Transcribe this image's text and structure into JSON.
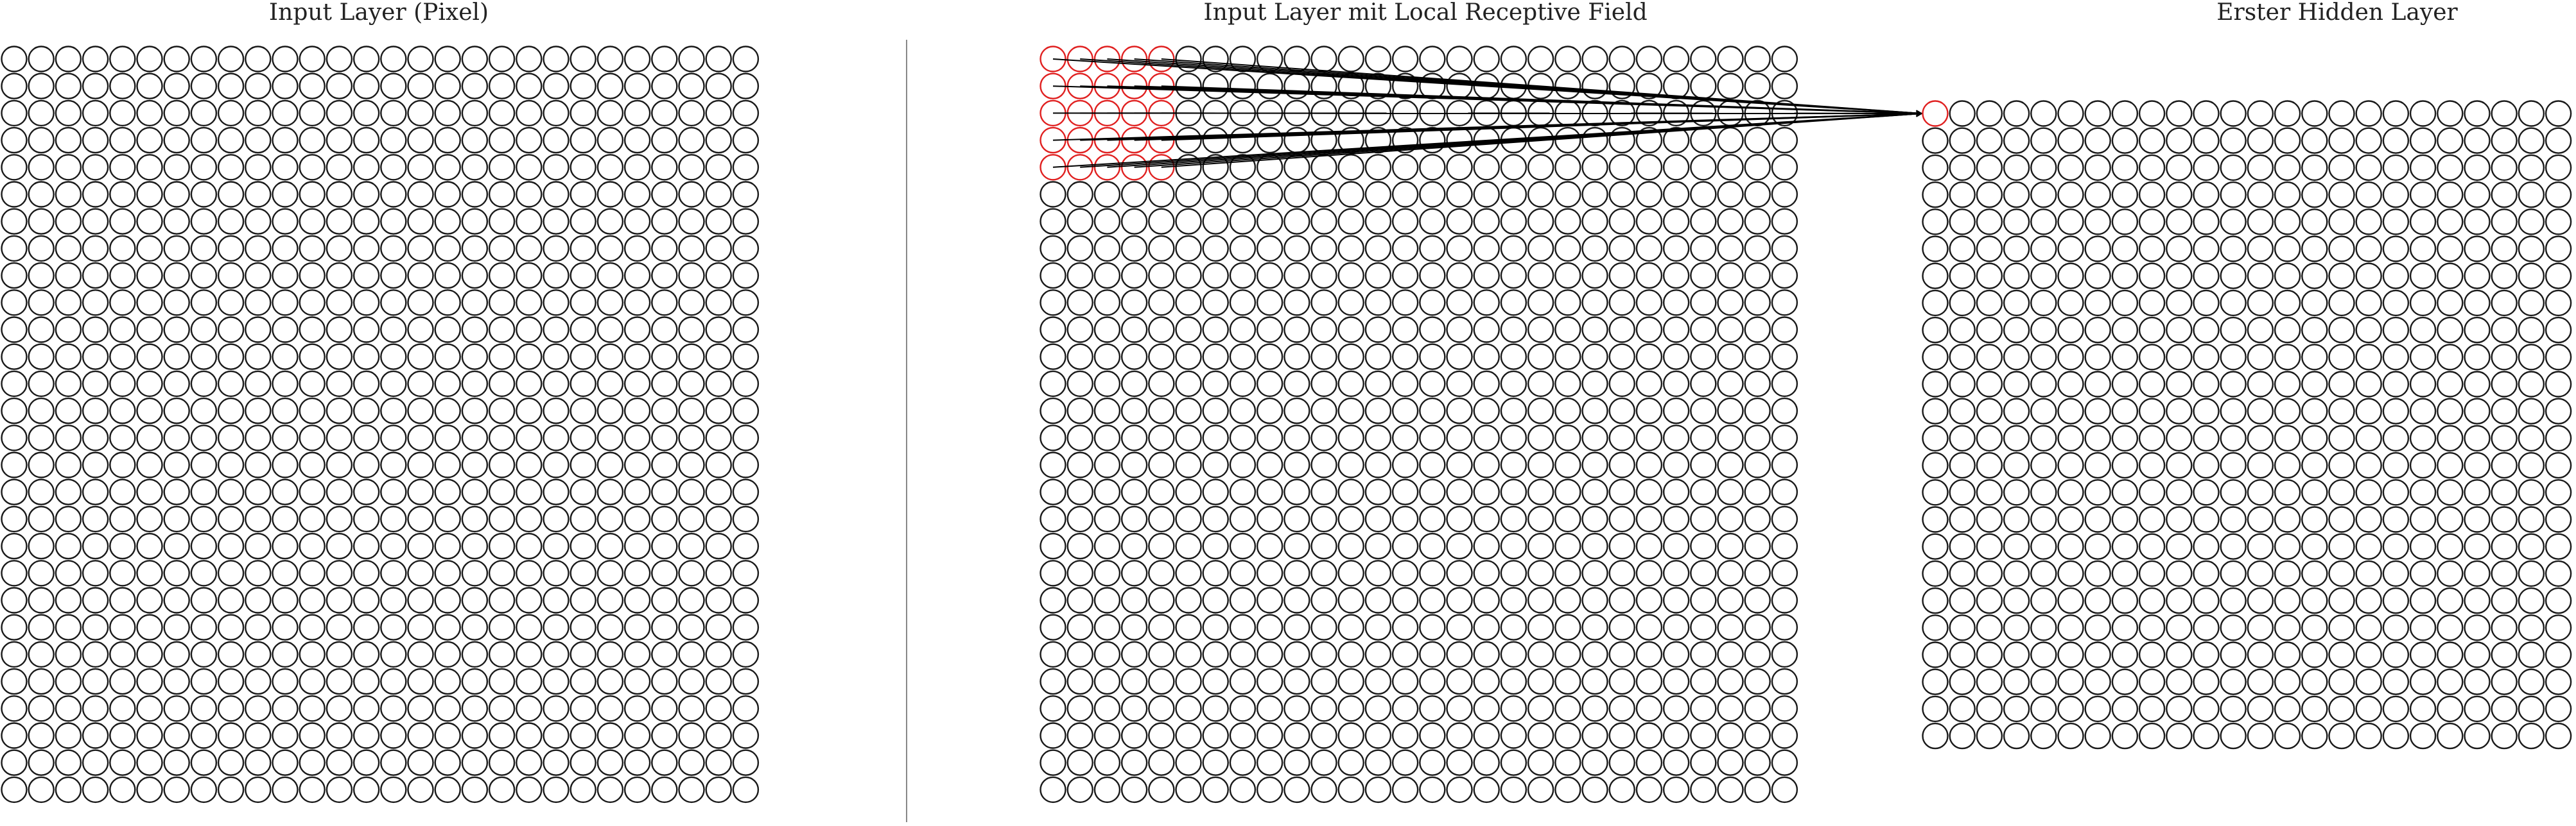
{
  "titles": {
    "input_layer": "Input Layer (Pixel)",
    "input_layer_lrf": "Input Layer mit Local Receptive Field",
    "hidden_layer": "Erster Hidden Layer"
  },
  "input_layer": {
    "rows": 28,
    "cols": 28
  },
  "lrf_layer": {
    "rows": 28,
    "cols": 28,
    "receptive_field_rows": 5,
    "receptive_field_cols": 5
  },
  "hidden_layer": {
    "rows": 24,
    "cols": 24,
    "highlighted_neuron": [
      0,
      0
    ]
  },
  "colors": {
    "neuron_stroke": "#1a1a1a",
    "highlight": "#e02020",
    "divider": "#888888",
    "connection": "#000000"
  }
}
